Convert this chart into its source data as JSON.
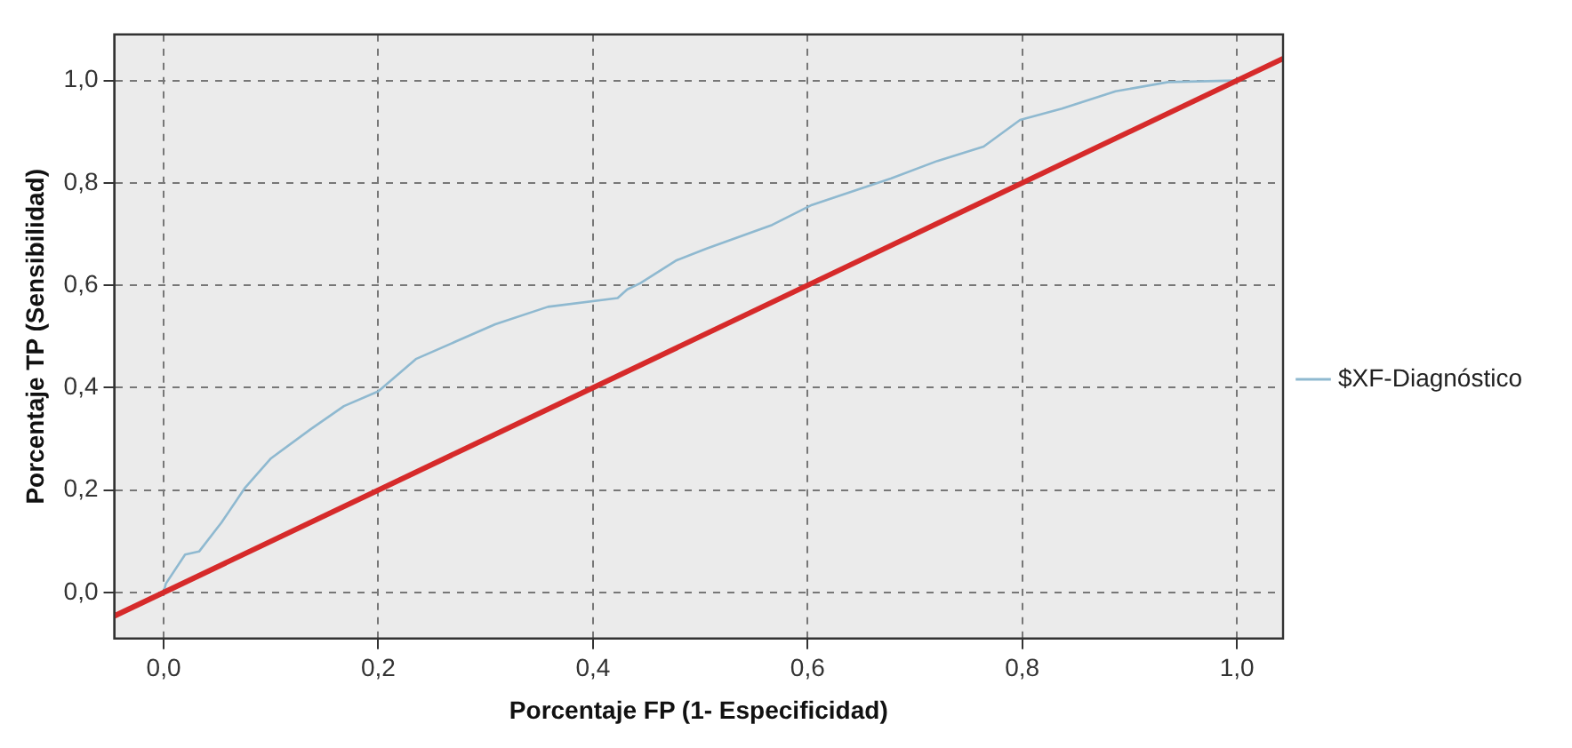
{
  "chart_data": {
    "type": "line",
    "xlabel": "Porcentaje FP (1- Especificidad)",
    "ylabel": "Porcentaje TP (Sensibilidad)",
    "xlim": [
      -0.046,
      1.043
    ],
    "ylim": [
      -0.09,
      1.09
    ],
    "xticks": [
      {
        "value": 0,
        "label": "0,0"
      },
      {
        "value": 0.2,
        "label": "0,2"
      },
      {
        "value": 0.4,
        "label": "0,4"
      },
      {
        "value": 0.6,
        "label": "0,6"
      },
      {
        "value": 0.8,
        "label": "0,8"
      },
      {
        "value": 1,
        "label": "1,0"
      }
    ],
    "yticks": [
      {
        "value": 0,
        "label": "0,0"
      },
      {
        "value": 0.2,
        "label": "0,2"
      },
      {
        "value": 0.4,
        "label": "0,4"
      },
      {
        "value": 0.6,
        "label": "0,6"
      },
      {
        "value": 0.8,
        "label": "0,8"
      },
      {
        "value": 1,
        "label": "1,0"
      }
    ],
    "grid": true,
    "legend": "right",
    "marker": "none",
    "series": [
      {
        "name": "$XF-Diagnóstico",
        "color": "#8fb9d0",
        "x": [
          0,
          0.002,
          0.02,
          0.033,
          0.054,
          0.076,
          0.1,
          0.137,
          0.168,
          0.2,
          0.235,
          0.272,
          0.309,
          0.358,
          0.423,
          0.432,
          0.444,
          0.478,
          0.506,
          0.567,
          0.604,
          0.678,
          0.721,
          0.764,
          0.798,
          0.837,
          0.887,
          0.936,
          1.0
        ],
        "values": [
          0,
          0.017,
          0.074,
          0.08,
          0.137,
          0.205,
          0.262,
          0.319,
          0.364,
          0.393,
          0.456,
          0.49,
          0.524,
          0.558,
          0.575,
          0.592,
          0.604,
          0.649,
          0.672,
          0.718,
          0.757,
          0.809,
          0.843,
          0.871,
          0.923,
          0.945,
          0.979,
          0.997,
          1.0
        ]
      },
      {
        "type": "line",
        "color": "#d62a2a",
        "x": [
          -0.046,
          1.043
        ],
        "values": [
          -0.046,
          1.043
        ]
      }
    ]
  }
}
